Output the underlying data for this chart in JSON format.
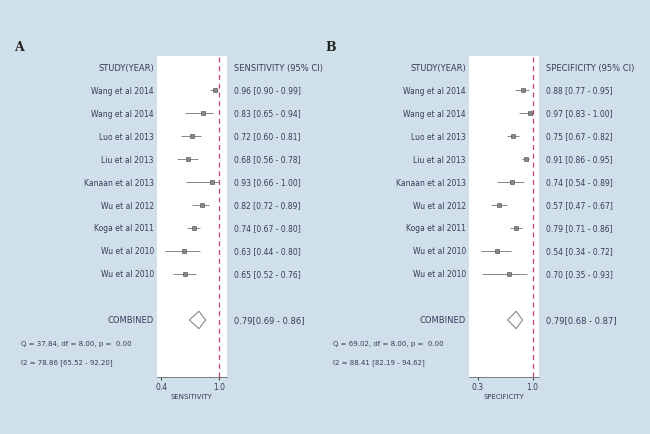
{
  "bg_color": "#cfe0ea",
  "panel_bg": "#ffffff",
  "text_color": "#3a3a5a",
  "panel_A": {
    "label": "A",
    "studies": [
      "Wang et al 2014",
      "Wang et al 2014",
      "Luo et al 2013",
      "Liu et al 2013",
      "Kanaan et al 2013",
      "Wu et al 2012",
      "Koga et al 2011",
      "Wu et al 2010",
      "Wu et al 2010"
    ],
    "estimates": [
      0.96,
      0.83,
      0.72,
      0.68,
      0.93,
      0.82,
      0.74,
      0.63,
      0.65
    ],
    "ci_low": [
      0.9,
      0.65,
      0.6,
      0.56,
      0.66,
      0.72,
      0.67,
      0.44,
      0.52
    ],
    "ci_high": [
      0.99,
      0.94,
      0.81,
      0.78,
      1.0,
      0.89,
      0.8,
      0.8,
      0.76
    ],
    "ci_labels": [
      "0.96 [0.90 - 0.99]",
      "0.83 [0.65 - 0.94]",
      "0.72 [0.60 - 0.81]",
      "0.68 [0.56 - 0.78]",
      "0.93 [0.66 - 1.00]",
      "0.82 [0.72 - 0.89]",
      "0.74 [0.67 - 0.80]",
      "0.63 [0.44 - 0.80]",
      "0.65 [0.52 - 0.76]"
    ],
    "combined_est": 0.79,
    "combined_ci_low": 0.69,
    "combined_ci_high": 0.86,
    "combined_label": "0.79[0.69 - 0.86]",
    "q_stat": "Q = 37.84, df = 8.00, p =  0.00",
    "i2_stat": "I2 = 78.86 [65.52 - 92.20]",
    "xlabel": "SENSITIVITY",
    "header_ci": "SENSITIVITY (95% CI)",
    "xlim": [
      0.35,
      1.08
    ],
    "xticks": [
      0.4,
      1.0
    ],
    "xtick_labels": [
      "0.4",
      "1.0"
    ],
    "dashed_line_x": 1.0
  },
  "panel_B": {
    "label": "B",
    "studies": [
      "Wang et al 2014",
      "Wang et al 2014",
      "Luo et al 2013",
      "Liu et al 2013",
      "Kanaan et al 2013",
      "Wu et al 2012",
      "Koga et al 2011",
      "Wu et al 2010",
      "Wu et al 2010"
    ],
    "estimates": [
      0.88,
      0.97,
      0.75,
      0.91,
      0.74,
      0.57,
      0.79,
      0.54,
      0.7
    ],
    "ci_low": [
      0.77,
      0.83,
      0.67,
      0.86,
      0.54,
      0.47,
      0.71,
      0.34,
      0.35
    ],
    "ci_high": [
      0.95,
      1.0,
      0.82,
      0.95,
      0.89,
      0.67,
      0.86,
      0.72,
      0.93
    ],
    "ci_labels": [
      "0.88 [0.77 - 0.95]",
      "0.97 [0.83 - 1.00]",
      "0.75 [0.67 - 0.82]",
      "0.91 [0.86 - 0.95]",
      "0.74 [0.54 - 0.89]",
      "0.57 [0.47 - 0.67]",
      "0.79 [0.71 - 0.86]",
      "0.54 [0.34 - 0.72]",
      "0.70 [0.35 - 0.93]"
    ],
    "combined_est": 0.79,
    "combined_ci_low": 0.68,
    "combined_ci_high": 0.87,
    "combined_label": "0.79[0.68 - 0.87]",
    "q_stat": "Q = 69.02, df = 8.00, p =  0.00",
    "i2_stat": "I2 = 88.41 [82.19 - 94.62]",
    "xlabel": "SPECIFICITY",
    "header_ci": "SPECIFICITY (95% CI)",
    "xlim": [
      0.18,
      1.08
    ],
    "xticks": [
      0.3,
      1.0
    ],
    "xtick_labels": [
      "0.3",
      "1.0"
    ],
    "dashed_line_x": 1.0
  }
}
